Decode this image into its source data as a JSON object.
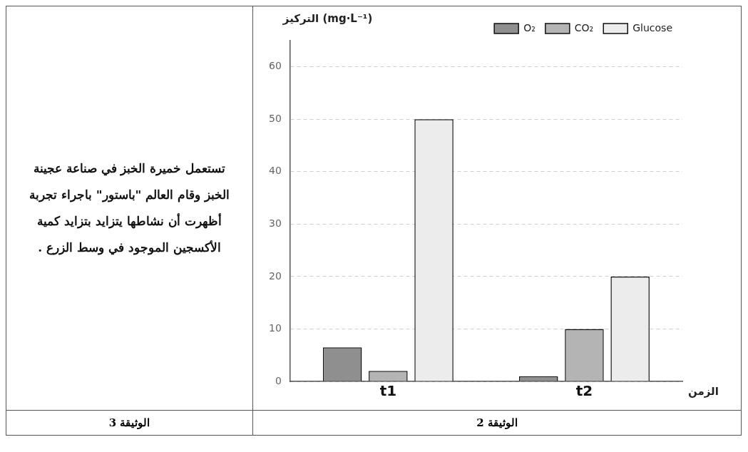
{
  "chart_data": [
    {
      "type": "bar",
      "categories": [
        "t1",
        "t2"
      ],
      "series": [
        {
          "name": "O₂",
          "color": "#8f8f8f",
          "values": [
            6.5,
            1
          ]
        },
        {
          "name": "CO₂",
          "color": "#b4b4b4",
          "values": [
            2,
            10
          ]
        },
        {
          "name": "Glucose",
          "color": "#ececec",
          "values": [
            50,
            20
          ]
        }
      ],
      "ylabel": "التركيز (mg·L⁻¹)",
      "xlabel": "الزمن",
      "ylim": [
        0,
        65
      ],
      "yticks": [
        0,
        10,
        20,
        30,
        40,
        50,
        60
      ],
      "grid": "y",
      "legend": "top right",
      "annotations": [
        "الوثيقة 2"
      ]
    },
    {
      "type": "other",
      "annotations": [
        "تستعمل خميرة الخبز في صناعة عجينة الخبز وقام العالم \"باستور\" باجراء تجربة أظهرت أن نشاطها يتزايد بتزايد كمية الأكسجين الموجود في وسط الزرع .",
        "الوثيقة 3"
      ]
    }
  ]
}
